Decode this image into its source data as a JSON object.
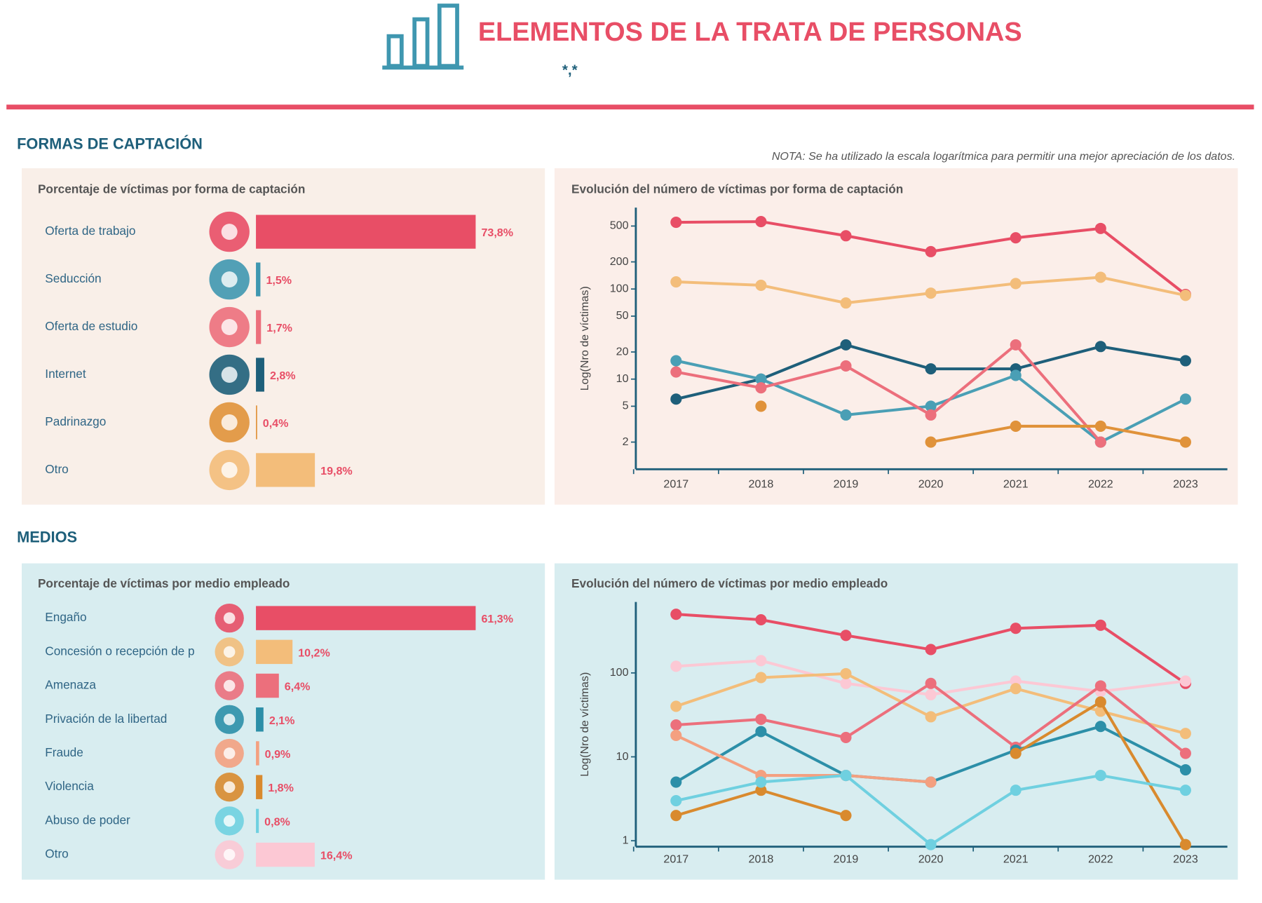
{
  "header": {
    "title": "ELEMENTOS DE LA TRATA DE PERSONAS",
    "subtitle": "*,*"
  },
  "sections": [
    {
      "heading": "FORMAS DE CAPTACIÓN",
      "note": "NOTA: Se ha utilizado la escala logarítmica para permitir una mejor apreciación de los datos."
    },
    {
      "heading": "MEDIOS"
    }
  ],
  "chart_data": [
    {
      "type": "bar",
      "orientation": "horizontal",
      "title": "Porcentaje de víctimas por forma de captación",
      "categories": [
        "Oferta de trabajo",
        "Seducción",
        "Oferta de estudio",
        "Internet",
        "Padrinazgo",
        "Otro"
      ],
      "values": [
        73.8,
        1.5,
        1.7,
        2.8,
        0.4,
        19.8
      ],
      "value_labels": [
        "73,8%",
        "1,5%",
        "1,7%",
        "2,8%",
        "0,4%",
        "19,8%"
      ],
      "colors": [
        "#e84e66",
        "#3f97b0",
        "#ec6f7c",
        "#1e5f7a",
        "#e0923a",
        "#f3bd7a"
      ]
    },
    {
      "type": "line",
      "title": "Evolución del número de víctimas por forma de captación",
      "ylabel": "Log(Nro de víctimas)",
      "log_scale": true,
      "grid": false,
      "categories": [
        "2017",
        "2018",
        "2019",
        "2020",
        "2021",
        "2022",
        "2023"
      ],
      "ylim": [
        1,
        800
      ],
      "yticks": [
        2,
        5,
        10,
        20,
        50,
        100,
        200,
        500
      ],
      "series": [
        {
          "color": "#e84e66",
          "values": [
            550,
            560,
            390,
            260,
            370,
            470,
            87
          ]
        },
        {
          "color": "#f3bd7a",
          "values": [
            120,
            110,
            70,
            90,
            115,
            135,
            85
          ]
        },
        {
          "color": "#1e5f7a",
          "values": [
            6,
            10,
            24,
            13,
            13,
            23,
            16
          ]
        },
        {
          "color": "#4a9fb5",
          "values": [
            16,
            10,
            4,
            5,
            11,
            2,
            6
          ]
        },
        {
          "color": "#ec6f7c",
          "values": [
            12,
            8,
            14,
            4,
            24,
            2,
            null
          ]
        },
        {
          "color": "#e0923a",
          "values": [
            null,
            5,
            null,
            2,
            3,
            3,
            2
          ]
        }
      ]
    },
    {
      "type": "bar",
      "orientation": "horizontal",
      "title": "Porcentaje de víctimas por medio empleado",
      "categories": [
        "Engaño",
        "Concesión o recepción de p",
        "Amenaza",
        "Privación de la libertad",
        "Fraude",
        "Violencia",
        "Abuso de poder",
        "Otro"
      ],
      "values": [
        61.3,
        10.2,
        6.4,
        2.1,
        0.9,
        1.8,
        0.8,
        16.4
      ],
      "value_labels": [
        "61,3%",
        "10,2%",
        "6,4%",
        "2,1%",
        "0,9%",
        "1,8%",
        "0,8%",
        "16,4%"
      ],
      "colors": [
        "#e84e66",
        "#f3bd7a",
        "#ec6f7c",
        "#2c8fa8",
        "#f4a080",
        "#d98a2e",
        "#6fd0e0",
        "#fcc8d4"
      ]
    },
    {
      "type": "line",
      "title": "Evolución del número de víctimas por medio empleado",
      "ylabel": "Log(Nro de víctimas)",
      "log_scale": true,
      "grid": false,
      "categories": [
        "2017",
        "2018",
        "2019",
        "2020",
        "2021",
        "2022",
        "2023"
      ],
      "ylim": [
        0.85,
        700
      ],
      "yticks": [
        1,
        10,
        100
      ],
      "series": [
        {
          "color": "#e84e66",
          "values": [
            500,
            430,
            280,
            190,
            340,
            370,
            75
          ]
        },
        {
          "color": "#fcc8d4",
          "values": [
            120,
            140,
            75,
            55,
            80,
            60,
            80
          ]
        },
        {
          "color": "#f3bd7a",
          "values": [
            40,
            88,
            98,
            30,
            65,
            35,
            19
          ]
        },
        {
          "color": "#ec6f7c",
          "values": [
            24,
            28,
            17,
            75,
            13,
            70,
            11
          ]
        },
        {
          "color": "#2c8fa8",
          "values": [
            5,
            20,
            6,
            5,
            12,
            23,
            7
          ]
        },
        {
          "color": "#f4a080",
          "values": [
            18,
            6,
            6,
            5,
            null,
            null,
            null
          ]
        },
        {
          "color": "#d98a2e",
          "values": [
            2,
            4,
            2,
            null,
            11,
            45,
            0.9
          ]
        },
        {
          "color": "#6fd0e0",
          "values": [
            3,
            5,
            6,
            0.9,
            4,
            6,
            4
          ]
        }
      ]
    }
  ]
}
